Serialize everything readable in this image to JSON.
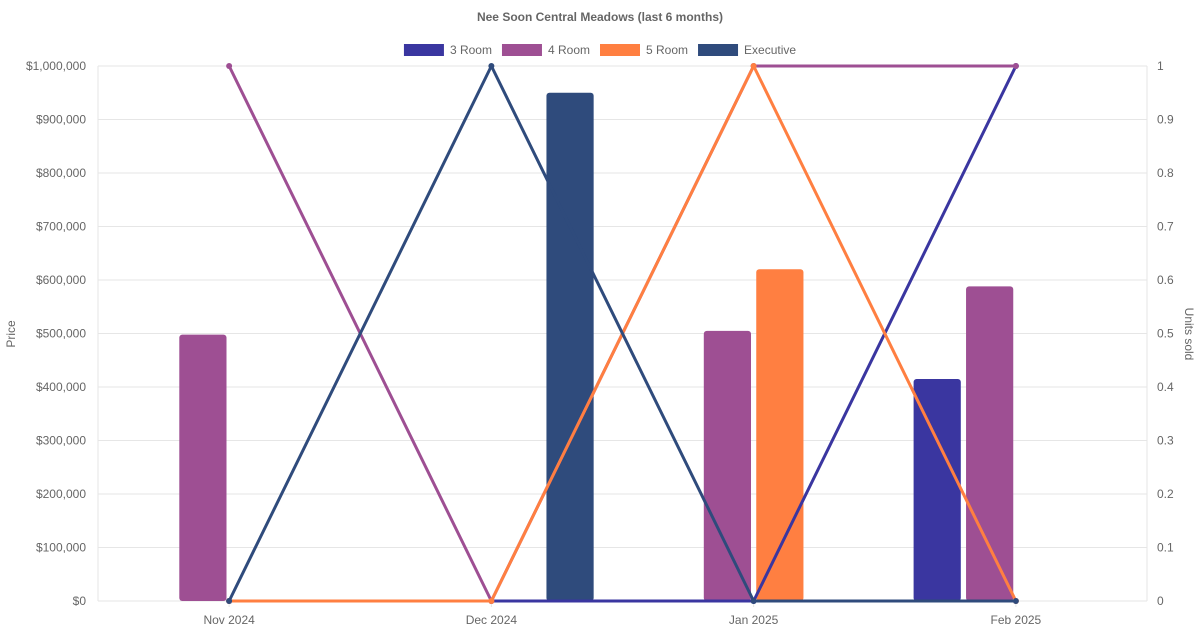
{
  "chart_data": {
    "type": "bar",
    "title": "Nee Soon Central Meadows (last 6 months)",
    "categories": [
      "Nov 2024",
      "Dec 2024",
      "Jan 2025",
      "Feb 2025"
    ],
    "ylabel": "Price",
    "y2label": "Units sold",
    "ylim": [
      0,
      1000000
    ],
    "y2lim": [
      0,
      1
    ],
    "yticks": [
      "$0",
      "$100,000",
      "$200,000",
      "$300,000",
      "$400,000",
      "$500,000",
      "$600,000",
      "$700,000",
      "$800,000",
      "$900,000",
      "$1,000,000"
    ],
    "y2ticks": [
      "0",
      "0.1",
      "0.2",
      "0.3",
      "0.4",
      "0.5",
      "0.6",
      "0.7",
      "0.8",
      "0.9",
      "1"
    ],
    "grid": true,
    "legend_position": "top-center",
    "series": [
      {
        "name": "3 Room",
        "color": "#3a36a0",
        "price": [
          null,
          null,
          null,
          415000
        ],
        "units": [
          0,
          0,
          0,
          1
        ]
      },
      {
        "name": "4 Room",
        "color": "#9e4f93",
        "price": [
          498000,
          null,
          505000,
          588000
        ],
        "units": [
          1,
          0,
          1,
          1
        ]
      },
      {
        "name": "5 Room",
        "color": "#ff7f41",
        "price": [
          null,
          null,
          620000,
          null
        ],
        "units": [
          0,
          0,
          1,
          0
        ]
      },
      {
        "name": "Executive",
        "color": "#2f4b7c",
        "price": [
          null,
          950000,
          null,
          null
        ],
        "units": [
          0,
          1,
          0,
          0
        ]
      }
    ]
  }
}
